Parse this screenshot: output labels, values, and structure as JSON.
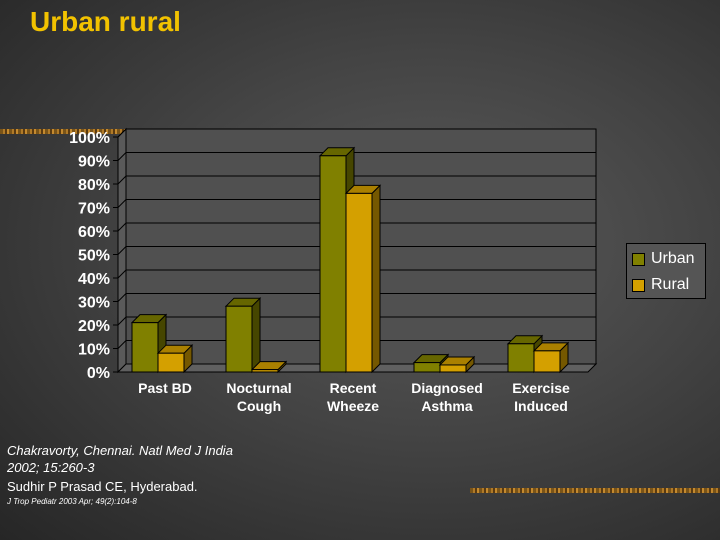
{
  "title": "Urban rural",
  "colors": {
    "urban": "#808000",
    "rural": "#d4a000",
    "background": "#444444"
  },
  "legend": {
    "items": [
      {
        "label": "Urban",
        "color": "#808000"
      },
      {
        "label": "Rural",
        "color": "#d4a000"
      }
    ]
  },
  "sources": {
    "line1": "Chakravorty, Chennai. Natl Med J India 2002; 15:260-3",
    "line2": "Sudhir P Prasad CE, Hyderabad.",
    "line3": "J Trop Pediatr 2003 Apr; 49(2):104-8"
  },
  "chart_data": {
    "type": "bar",
    "categories": [
      [
        "Past BD"
      ],
      [
        "Nocturnal",
        "Cough"
      ],
      [
        "Recent",
        "Wheeze"
      ],
      [
        "Diagnosed",
        "Asthma"
      ],
      [
        "Exercise",
        "Induced"
      ]
    ],
    "series": [
      {
        "name": "Urban",
        "values": [
          21,
          28,
          92,
          4,
          12
        ]
      },
      {
        "name": "Rural",
        "values": [
          8,
          1,
          76,
          3,
          9
        ]
      }
    ],
    "yticks": [
      "0%",
      "10%",
      "20%",
      "30%",
      "40%",
      "50%",
      "60%",
      "70%",
      "80%",
      "90%",
      "100%"
    ],
    "ylim": [
      0,
      100
    ],
    "grid": true,
    "legend_position": "right"
  }
}
